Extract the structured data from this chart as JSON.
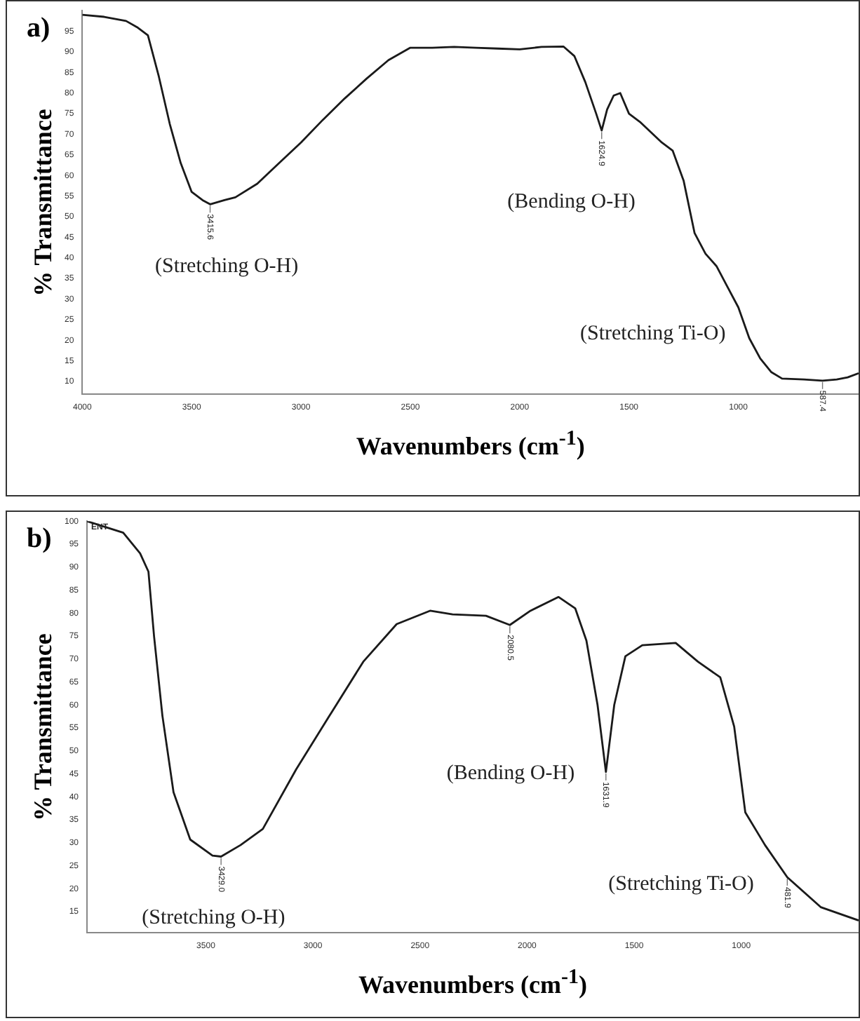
{
  "chart_data": [
    {
      "type": "line",
      "title": "a)",
      "xlabel": "Wavenumbers (cm$^{-1}$)",
      "ylabel": "% Transmittance",
      "xlim": [
        4000,
        450
      ],
      "xticks": [
        4000,
        3500,
        3000,
        2500,
        2000,
        1500,
        1000
      ],
      "ylim": [
        7,
        100
      ],
      "yticks": [
        10,
        15,
        20,
        25,
        30,
        35,
        40,
        45,
        50,
        55,
        60,
        65,
        70,
        75,
        80,
        85,
        90,
        95
      ],
      "grid": false,
      "legend": false,
      "marker": "none",
      "series": [
        {
          "color": "#1a1a1a",
          "x": [
            4000,
            3900,
            3800,
            3750,
            3700,
            3650,
            3600,
            3550,
            3500,
            3450,
            3415.6,
            3350,
            3300,
            3200,
            3100,
            3000,
            2900,
            2800,
            2700,
            2600,
            2500,
            2400,
            2300,
            2200,
            2100,
            2000,
            1900,
            1800,
            1750,
            1700,
            1650,
            1624.9,
            1600,
            1570,
            1540,
            1500,
            1450,
            1400,
            1350,
            1300,
            1250,
            1200,
            1150,
            1100,
            1050,
            1000,
            950,
            900,
            850,
            800,
            700,
            615,
            550,
            500,
            450
          ],
          "values": [
            99,
            98.5,
            97.5,
            96,
            94,
            84,
            72.5,
            63,
            56,
            54,
            53,
            54,
            54.7,
            58,
            63,
            68,
            73.5,
            78.7,
            83.5,
            88,
            91,
            91,
            91.2,
            91,
            90.8,
            90.6,
            91.2,
            91.3,
            89,
            82.7,
            75,
            70.9,
            76,
            79.4,
            80,
            75,
            73,
            70.5,
            68,
            66,
            58.7,
            46,
            41,
            38,
            33,
            28,
            20.5,
            15.6,
            12.3,
            10.7,
            10.5,
            10.2,
            10.5,
            11,
            12
          ]
        }
      ],
      "annotations": [
        {
          "text": "3415.6",
          "x": 3415.6,
          "y": 53
        },
        {
          "text": "1624.9",
          "x": 1624.9,
          "y": 70.9
        },
        {
          "text": "587.4",
          "x": 615,
          "y": 10.2
        },
        "(Stretching O-H)",
        "(Bending O-H)",
        "(Stretching Ti-O)"
      ]
    },
    {
      "type": "line",
      "title": "b)",
      "xlabel": "Wavenumbers (cm$^{-1}$)",
      "ylabel": "% Transmittance",
      "xlim": [
        4055,
        452
      ],
      "xticks": [
        3500,
        3000,
        2500,
        2000,
        1500,
        1000
      ],
      "ylim": [
        10.5,
        100
      ],
      "yticks": [
        15,
        20,
        25,
        30,
        35,
        40,
        45,
        50,
        55,
        60,
        65,
        70,
        75,
        80,
        85,
        90,
        95,
        100
      ],
      "grid": false,
      "legend": false,
      "marker": "none",
      "series": [
        {
          "color": "#1a1a1a",
          "x": [
            4055,
            3886,
            3807,
            3768,
            3742,
            3703,
            3651,
            3573,
            3469,
            3429,
            3338,
            3234,
            3078,
            2922,
            2765,
            2609,
            2453,
            2348,
            2192,
            2080.5,
            1984,
            1853,
            1775,
            1723,
            1671,
            1631.9,
            1593,
            1541,
            1462,
            1306,
            1202,
            1098,
            1033,
            981,
            889,
            785,
            629,
            452
          ],
          "values": [
            100,
            97.5,
            93,
            89,
            75,
            57.7,
            41,
            30.7,
            27.2,
            27,
            29.5,
            33,
            46,
            57.7,
            69.4,
            77.6,
            80.5,
            79.7,
            79.4,
            77.4,
            80.5,
            83.5,
            81,
            74,
            60,
            45.4,
            60,
            70.6,
            73,
            73.5,
            69.4,
            66,
            55.3,
            36.6,
            29.5,
            22.5,
            16,
            13.1
          ]
        }
      ],
      "annotations": [
        "ENT",
        {
          "text": "3429.0",
          "x": 3429,
          "y": 27
        },
        {
          "text": "2080.5",
          "x": 2080.5,
          "y": 77.4
        },
        {
          "text": "1631.9",
          "x": 1631.9,
          "y": 45.4
        },
        {
          "text": "481.9",
          "x": 785,
          "y": 22.5
        },
        "(Stretching O-H)",
        "(Bending O-H)",
        "(Stretching Ti-O)"
      ]
    }
  ]
}
